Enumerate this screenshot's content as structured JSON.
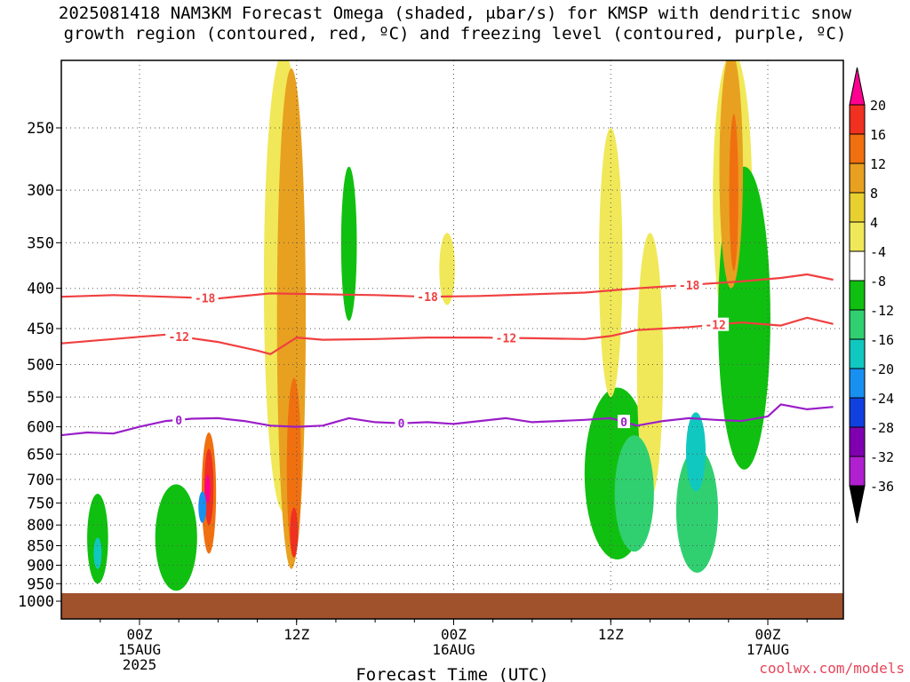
{
  "header": {
    "title_line1": "2025081418 NAM3KM Forecast Omega (shaded, μbar/s) for KMSP with dendritic snow",
    "title_line2": "growth region (contoured, red, ºC) and freezing level (contoured, purple, ºC)"
  },
  "footer": {
    "xlabel": "Forecast Time (UTC)",
    "credit": "coolwx.com/models"
  },
  "colorbar": {
    "levels": [
      "20",
      "16",
      "12",
      "8",
      "4",
      "-4",
      "-8",
      "-12",
      "-16",
      "-20",
      "-24",
      "-28",
      "-32",
      "-36"
    ],
    "colors": [
      "#ff0090",
      "#f03020",
      "#f07010",
      "#e8a020",
      "#e8d030",
      "#f0e858",
      "#ffffff",
      "#10c010",
      "#30d070",
      "#10c8c0",
      "#1890f0",
      "#1040e0",
      "#8000b0",
      "#b020d0",
      "#b0b0b0",
      "#000000"
    ]
  },
  "chart_data": {
    "type": "time-height cross section (filled contours)",
    "title": "2025081418 NAM3KM Forecast Omega (shaded, μbar/s) for KMSP with dendritic snow growth region (contoured, red, ºC) and freezing level (contoured, purple, ºC)",
    "xlabel": "Forecast Time (UTC)",
    "ylabel": "",
    "x_range_hours_from_init": [
      0,
      59
    ],
    "y_ticks_hPa": [
      250,
      300,
      350,
      400,
      450,
      500,
      550,
      600,
      650,
      700,
      750,
      800,
      850,
      900,
      950,
      1000
    ],
    "y_range_hPa": [
      200,
      1000
    ],
    "y_scale": "log-pressure",
    "x_ticks": [
      {
        "hour": 6,
        "label": "00Z",
        "sub1": "15AUG",
        "sub2": "2025"
      },
      {
        "hour": 18,
        "label": "12Z",
        "sub1": "",
        "sub2": ""
      },
      {
        "hour": 30,
        "label": "00Z",
        "sub1": "16AUG",
        "sub2": ""
      },
      {
        "hour": 42,
        "label": "12Z",
        "sub1": "",
        "sub2": ""
      },
      {
        "hour": 54,
        "label": "00Z",
        "sub1": "17AUG",
        "sub2": ""
      }
    ],
    "grid": true,
    "contours": [
      {
        "label": "-18",
        "color": "#f04040",
        "x": [
          0,
          4,
          8,
          12,
          16,
          20,
          24,
          28,
          32,
          36,
          40,
          44,
          48,
          52,
          55,
          57,
          59
        ],
        "y": [
          410,
          408,
          410,
          412,
          406,
          407,
          408,
          410,
          409,
          407,
          405,
          400,
          396,
          392,
          388,
          384,
          390
        ],
        "label_hours": [
          11,
          28,
          48
        ]
      },
      {
        "label": "-12",
        "color": "#f04040",
        "x": [
          0,
          4,
          8,
          12,
          15,
          16,
          18,
          20,
          24,
          28,
          32,
          36,
          40,
          42,
          44,
          48,
          52,
          55,
          57,
          59
        ],
        "y": [
          470,
          464,
          458,
          468,
          480,
          485,
          462,
          465,
          464,
          462,
          462,
          463,
          464,
          460,
          452,
          448,
          442,
          446,
          436,
          444
        ],
        "label_hours": [
          9,
          34,
          50
        ]
      },
      {
        "label": "0",
        "color": "#9a1ec8",
        "x": [
          0,
          2,
          4,
          6,
          8,
          10,
          12,
          14,
          16,
          18,
          20,
          22,
          24,
          26,
          28,
          30,
          32,
          34,
          36,
          38,
          40,
          42,
          44,
          46,
          48,
          50,
          52,
          54,
          55,
          57,
          59
        ],
        "y": [
          615,
          610,
          612,
          600,
          590,
          586,
          585,
          590,
          598,
          600,
          598,
          585,
          592,
          594,
          592,
          595,
          590,
          585,
          592,
          590,
          588,
          585,
          598,
          590,
          585,
          588,
          590,
          582,
          562,
          570,
          566
        ],
        "label_hours": [
          9,
          26,
          43
        ]
      }
    ],
    "shaded_cells_desc": "omega shading in μbar/s",
    "shaded_regions": [
      {
        "value": 20,
        "x": 11.2,
        "p": 720,
        "w": 0.35,
        "h": 60
      },
      {
        "value": 16,
        "x": 11.3,
        "p": 720,
        "w": 0.7,
        "h": 160
      },
      {
        "value": 12,
        "x": 11.3,
        "p": 740,
        "w": 1.1,
        "h": 260
      },
      {
        "value": 16,
        "x": 17.8,
        "p": 820,
        "w": 0.6,
        "h": 120
      },
      {
        "value": 12,
        "x": 17.8,
        "p": 700,
        "w": 1.1,
        "h": 360
      },
      {
        "value": 8,
        "x": 17.6,
        "p": 560,
        "w": 2.2,
        "h": 700
      },
      {
        "value": 4,
        "x": 17.0,
        "p": 320,
        "w": 3.0,
        "h": 900
      },
      {
        "value": 12,
        "x": 51.4,
        "p": 310,
        "w": 0.7,
        "h": 140
      },
      {
        "value": 8,
        "x": 51.2,
        "p": 290,
        "w": 1.8,
        "h": 220
      },
      {
        "value": 4,
        "x": 51.3,
        "p": 280,
        "w": 3.0,
        "h": 380
      },
      {
        "value": -8,
        "x": 48.6,
        "p": 780,
        "w": 3.2,
        "h": 280
      },
      {
        "value": -12,
        "x": 48.5,
        "p": 650,
        "w": 1.5,
        "h": 150
      },
      {
        "value": -8,
        "x": 43.8,
        "p": 740,
        "w": 3.0,
        "h": 250
      },
      {
        "value": -4,
        "x": 42.5,
        "p": 710,
        "w": 5.0,
        "h": 350
      },
      {
        "value": -4,
        "x": 2.8,
        "p": 840,
        "w": 1.6,
        "h": 220
      },
      {
        "value": -12,
        "x": 2.8,
        "p": 870,
        "w": 0.6,
        "h": 80
      },
      {
        "value": -4,
        "x": 8.8,
        "p": 840,
        "w": 3.2,
        "h": 260
      },
      {
        "value": -16,
        "x": 10.8,
        "p": 760,
        "w": 0.6,
        "h": 70
      },
      {
        "value": 4,
        "x": 45.0,
        "p": 540,
        "w": 2.0,
        "h": 400
      },
      {
        "value": 4,
        "x": 42.0,
        "p": 400,
        "w": 1.8,
        "h": 300
      },
      {
        "value": -4,
        "x": 22.0,
        "p": 360,
        "w": 1.2,
        "h": 160
      },
      {
        "value": -4,
        "x": 52.2,
        "p": 480,
        "w": 4.0,
        "h": 400
      },
      {
        "value": 4,
        "x": 29.5,
        "p": 380,
        "w": 1.2,
        "h": 80
      }
    ]
  }
}
